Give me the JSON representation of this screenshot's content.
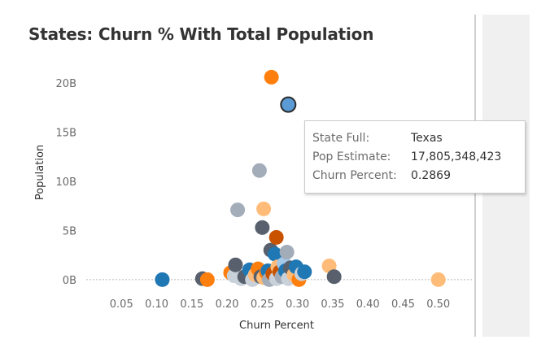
{
  "title": "States: Churn % With Total Population",
  "tooltip": {
    "rows": [
      {
        "label": "State Full:",
        "value": "Texas"
      },
      {
        "label": "Pop Estimate:",
        "value": "17,805,348,423"
      },
      {
        "label": "Churn Percent:",
        "value": "0.2869"
      }
    ]
  },
  "chart_data": {
    "type": "scatter",
    "title": "States: Churn % With Total Population",
    "xlabel": "Churn Percent",
    "ylabel": "Population",
    "xlim": [
      0.0,
      0.55
    ],
    "ylim": [
      -1.5,
      22
    ],
    "x_ticks": [
      0.05,
      0.1,
      0.15,
      0.2,
      0.25,
      0.3,
      0.35,
      0.4,
      0.45,
      0.5
    ],
    "x_tick_labels": [
      "0.05",
      "0.10",
      "0.15",
      "0.20",
      "0.25",
      "0.30",
      "0.35",
      "0.40",
      "0.45",
      "0.50"
    ],
    "y_ticks": [
      0,
      5,
      10,
      15,
      20
    ],
    "y_tick_labels": [
      "0B",
      "5B",
      "10B",
      "15B",
      "20B"
    ],
    "y_unit": "billions",
    "grid": false,
    "zero_line": true,
    "highlighted_point": {
      "x": 0.2869,
      "y": 17.81
    },
    "points": [
      {
        "x": 0.108,
        "y": 0.0,
        "color": "#1f77b4"
      },
      {
        "x": 0.165,
        "y": 0.1,
        "color": "#57606c"
      },
      {
        "x": 0.172,
        "y": 0.0,
        "color": "#ff7f0e"
      },
      {
        "x": 0.205,
        "y": 0.7,
        "color": "#ff7f0e"
      },
      {
        "x": 0.21,
        "y": 0.4,
        "color": "#c8d0d9"
      },
      {
        "x": 0.212,
        "y": 1.5,
        "color": "#57606c"
      },
      {
        "x": 0.22,
        "y": 0.1,
        "color": "#c8d0d9"
      },
      {
        "x": 0.225,
        "y": 0.3,
        "color": "#57606c"
      },
      {
        "x": 0.232,
        "y": 1.0,
        "color": "#1f77b4"
      },
      {
        "x": 0.236,
        "y": 0.0,
        "color": "#c8d0d9"
      },
      {
        "x": 0.24,
        "y": 0.5,
        "color": "#ffbc79"
      },
      {
        "x": 0.244,
        "y": 1.1,
        "color": "#ff7f0e"
      },
      {
        "x": 0.248,
        "y": 0.3,
        "color": "#57606c"
      },
      {
        "x": 0.252,
        "y": 0.2,
        "color": "#ffbc79"
      },
      {
        "x": 0.256,
        "y": 0.7,
        "color": "#ff7f0e"
      },
      {
        "x": 0.258,
        "y": 0.9,
        "color": "#1f77b4"
      },
      {
        "x": 0.26,
        "y": 0.0,
        "color": "#a3acb9"
      },
      {
        "x": 0.262,
        "y": 3.0,
        "color": "#57606c"
      },
      {
        "x": 0.265,
        "y": 0.6,
        "color": "#c85200"
      },
      {
        "x": 0.268,
        "y": 2.6,
        "color": "#1f77b4"
      },
      {
        "x": 0.27,
        "y": 0.1,
        "color": "#c8d0d9"
      },
      {
        "x": 0.272,
        "y": 1.3,
        "color": "#ffbc79"
      },
      {
        "x": 0.275,
        "y": 0.8,
        "color": "#c85200"
      },
      {
        "x": 0.278,
        "y": 0.3,
        "color": "#a3acb9"
      },
      {
        "x": 0.281,
        "y": 1.6,
        "color": "#a3c8e8"
      },
      {
        "x": 0.283,
        "y": 0.9,
        "color": "#1f77b4"
      },
      {
        "x": 0.285,
        "y": 2.8,
        "color": "#a3acb9"
      },
      {
        "x": 0.287,
        "y": 0.1,
        "color": "#c8d0d9"
      },
      {
        "x": 0.29,
        "y": 1.2,
        "color": "#57606c"
      },
      {
        "x": 0.295,
        "y": 0.5,
        "color": "#ffbc79"
      },
      {
        "x": 0.298,
        "y": 1.3,
        "color": "#1f77b4"
      },
      {
        "x": 0.302,
        "y": 0.0,
        "color": "#ff7f0e"
      },
      {
        "x": 0.306,
        "y": 0.6,
        "color": "#c8d0d9"
      },
      {
        "x": 0.31,
        "y": 0.8,
        "color": "#1f77b4"
      },
      {
        "x": 0.345,
        "y": 1.4,
        "color": "#ffbc79"
      },
      {
        "x": 0.352,
        "y": 0.3,
        "color": "#57606c"
      },
      {
        "x": 0.25,
        "y": 5.3,
        "color": "#57606c"
      },
      {
        "x": 0.27,
        "y": 4.3,
        "color": "#c85200"
      },
      {
        "x": 0.215,
        "y": 7.1,
        "color": "#a3acb9"
      },
      {
        "x": 0.252,
        "y": 7.2,
        "color": "#ffbc79"
      },
      {
        "x": 0.246,
        "y": 11.1,
        "color": "#a3acb9"
      },
      {
        "x": 0.263,
        "y": 20.6,
        "color": "#ff7f0e"
      },
      {
        "x": 0.5,
        "y": 0.0,
        "color": "#ffbc79"
      },
      {
        "x": 0.2869,
        "y": 17.81,
        "color": "#5b9bd5",
        "highlighted": true
      }
    ]
  }
}
